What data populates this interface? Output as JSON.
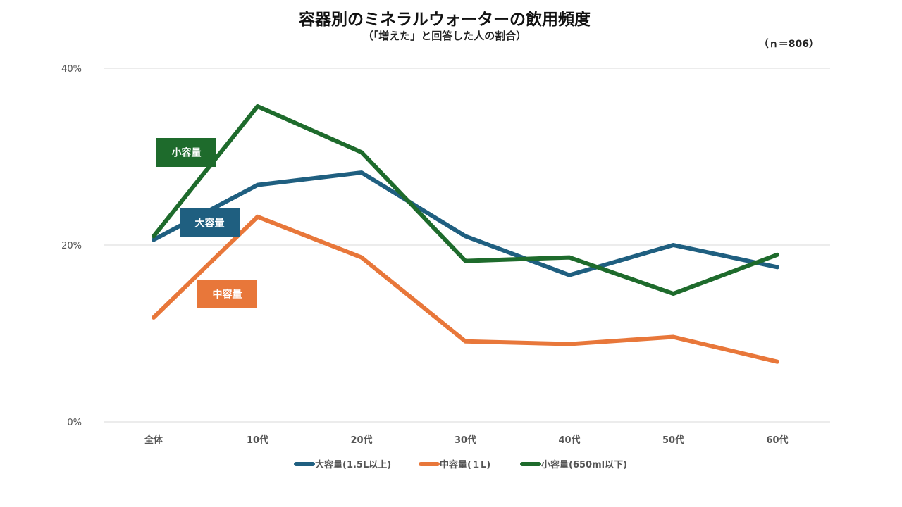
{
  "header": {
    "title": "容器別のミネラルウォーターの飲用頻度",
    "subtitle": "（「増えた」と回答した人の割合）",
    "sample_note": "（ｎ＝806）"
  },
  "chart_data": {
    "type": "line",
    "title": "容器別のミネラルウォーターの飲用頻度",
    "subtitle": "（「増えた」と回答した人の割合）",
    "xlabel": "",
    "ylabel": "",
    "categories": [
      "全体",
      "10代",
      "20代",
      "30代",
      "40代",
      "50代",
      "60代"
    ],
    "ylim": [
      0,
      40
    ],
    "yticks": [
      0,
      20,
      40
    ],
    "ytick_labels": [
      "0%",
      "20%",
      "40%"
    ],
    "grid": true,
    "legend_position": "bottom",
    "series": [
      {
        "name": "大容量(1.5L以上)",
        "tag": "大容量",
        "color": "#1f5f80",
        "values": [
          20.6,
          26.8,
          28.2,
          21.0,
          16.6,
          20.0,
          17.5
        ]
      },
      {
        "name": "中容量(１L)",
        "tag": "中容量",
        "color": "#e8773a",
        "values": [
          11.8,
          23.2,
          18.6,
          9.1,
          8.8,
          9.6,
          6.8
        ]
      },
      {
        "name": "小容量(650ml以下)",
        "tag": "小容量",
        "color": "#1e6b2c",
        "values": [
          21.0,
          35.7,
          30.5,
          18.2,
          18.6,
          14.5,
          18.9
        ]
      }
    ]
  }
}
